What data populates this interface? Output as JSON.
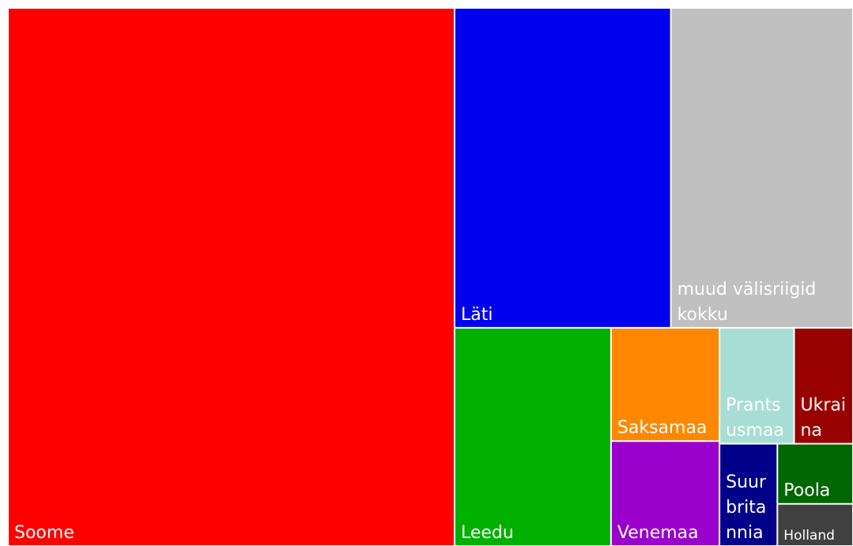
{
  "chart_data": {
    "type": "treemap",
    "categories": [
      "Soome",
      "Läti",
      "muud välisriigid kokku",
      "Leedu",
      "Saksamaa",
      "Venemaa",
      "Prantsusmaa",
      "Ukraina",
      "Suurbritannia",
      "Poola",
      "Holland"
    ],
    "values": [
      52.8,
      15.2,
      12.8,
      7.5,
      2.7,
      2.5,
      1.9,
      1.5,
      1.3,
      1.0,
      0.7
    ],
    "colors": [
      "#ff0000",
      "#0000ee",
      "#c0c0c0",
      "#00b000",
      "#ff8800",
      "#9900cc",
      "#a8ddd5",
      "#990000",
      "#000088",
      "#006600",
      "#404040"
    ]
  }
}
